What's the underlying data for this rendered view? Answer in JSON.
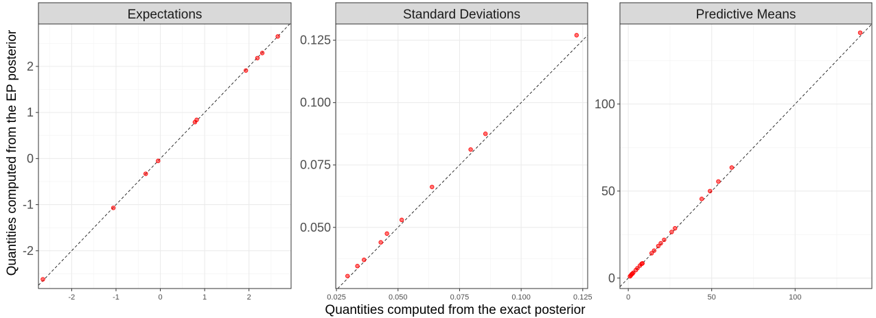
{
  "figure": {
    "xlabel": "Quantities computed from the exact posterior",
    "ylabel": "Quantities computed from the EP posterior"
  },
  "chart_data": [
    {
      "type": "scatter",
      "title": "Expectations",
      "xlim": [
        -2.75,
        2.95
      ],
      "ylim": [
        -2.82,
        2.92
      ],
      "x_ticks": [
        -2,
        -1,
        0,
        1,
        2
      ],
      "y_ticks": [
        -2,
        -1,
        0,
        1,
        2
      ],
      "x_tick_labels": [
        "-2",
        "-1",
        "0",
        "1",
        "2"
      ],
      "y_tick_labels": [
        "-2",
        "-1",
        "0",
        "1",
        "2"
      ],
      "reference_line": "y = x",
      "grid": true,
      "point_color": "#ff0000",
      "points": [
        {
          "x": -2.65,
          "y": -2.62
        },
        {
          "x": -1.06,
          "y": -1.07
        },
        {
          "x": -0.33,
          "y": -0.33
        },
        {
          "x": -0.05,
          "y": -0.05
        },
        {
          "x": 0.78,
          "y": 0.79
        },
        {
          "x": 0.82,
          "y": 0.84
        },
        {
          "x": 1.93,
          "y": 1.91
        },
        {
          "x": 2.19,
          "y": 2.18
        },
        {
          "x": 2.3,
          "y": 2.29
        },
        {
          "x": 2.65,
          "y": 2.65
        }
      ]
    },
    {
      "type": "scatter",
      "title": "Standard Deviations",
      "xlim": [
        0.0247,
        0.127
      ],
      "ylim": [
        0.0255,
        0.1315
      ],
      "x_ticks": [
        0.025,
        0.05,
        0.075,
        0.1,
        0.125
      ],
      "y_ticks": [
        0.05,
        0.075,
        0.1,
        0.125
      ],
      "x_tick_labels": [
        "0.025",
        "0.050",
        "0.075",
        "0.100",
        "0.125"
      ],
      "y_tick_labels": [
        "0.050",
        "0.075",
        "0.100",
        "0.125"
      ],
      "reference_line": "y = x",
      "grid": true,
      "point_color": "#ff0000",
      "points": [
        {
          "x": 0.0295,
          "y": 0.0305
        },
        {
          "x": 0.0335,
          "y": 0.0345
        },
        {
          "x": 0.0362,
          "y": 0.037
        },
        {
          "x": 0.043,
          "y": 0.044
        },
        {
          "x": 0.0455,
          "y": 0.0475
        },
        {
          "x": 0.0515,
          "y": 0.053
        },
        {
          "x": 0.0638,
          "y": 0.0662
        },
        {
          "x": 0.0795,
          "y": 0.0812
        },
        {
          "x": 0.0855,
          "y": 0.0875
        },
        {
          "x": 0.1225,
          "y": 0.127
        }
      ]
    },
    {
      "type": "scatter",
      "title": "Predictive Means",
      "xlim": [
        -5,
        146
      ],
      "ylim": [
        -6,
        146
      ],
      "x_ticks": [
        0,
        50,
        100
      ],
      "y_ticks": [
        0,
        50,
        100
      ],
      "x_tick_labels": [
        "0",
        "50",
        "100"
      ],
      "y_tick_labels": [
        "0",
        "50",
        "100"
      ],
      "reference_line": "y = x",
      "grid": true,
      "point_color": "#ff0000",
      "points": [
        {
          "x": 1,
          "y": 1
        },
        {
          "x": 1.5,
          "y": 1.5
        },
        {
          "x": 2,
          "y": 2.2
        },
        {
          "x": 2.5,
          "y": 2.5
        },
        {
          "x": 3,
          "y": 3.1
        },
        {
          "x": 4.5,
          "y": 4.6
        },
        {
          "x": 5.5,
          "y": 5.7
        },
        {
          "x": 7,
          "y": 7.2
        },
        {
          "x": 8,
          "y": 8.2
        },
        {
          "x": 8.5,
          "y": 8.5
        },
        {
          "x": 14,
          "y": 14.3
        },
        {
          "x": 15.5,
          "y": 15.8
        },
        {
          "x": 18,
          "y": 18.4
        },
        {
          "x": 19.5,
          "y": 20
        },
        {
          "x": 21.5,
          "y": 22
        },
        {
          "x": 26,
          "y": 26.5
        },
        {
          "x": 28,
          "y": 28.6
        },
        {
          "x": 44,
          "y": 45.5
        },
        {
          "x": 49,
          "y": 50
        },
        {
          "x": 54,
          "y": 55.5
        },
        {
          "x": 62,
          "y": 63.5
        },
        {
          "x": 139,
          "y": 141
        }
      ]
    }
  ]
}
